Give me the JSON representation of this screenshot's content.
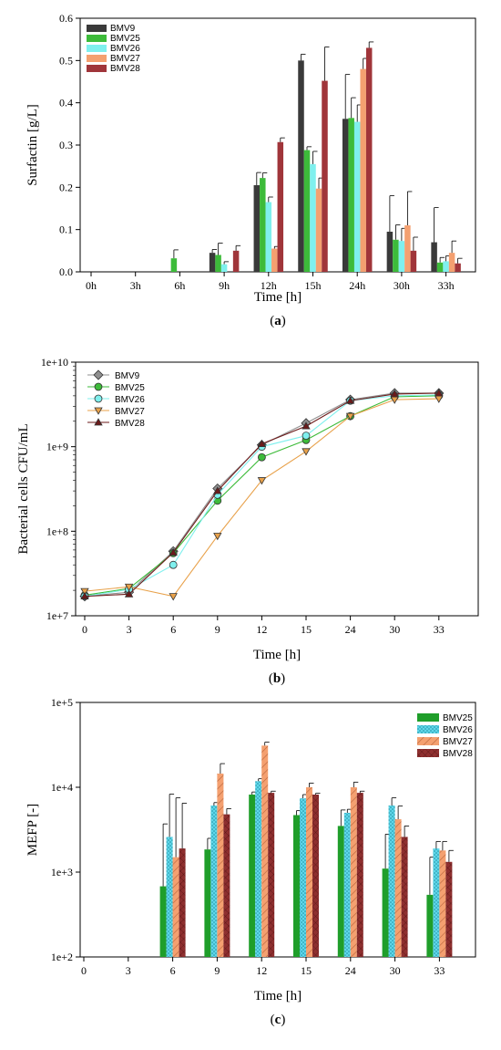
{
  "chart_data": [
    {
      "type": "bar",
      "panel_label": "a",
      "xlabel": "Time [h]",
      "ylabel": "Surfactin [g/L]",
      "ylim": [
        0,
        0.6
      ],
      "y_ticks": [
        "0.0",
        "0.1",
        "0.2",
        "0.3",
        "0.4",
        "0.5",
        "0.6"
      ],
      "y_tick_values": [
        0,
        0.1,
        0.2,
        0.3,
        0.4,
        0.5,
        0.6
      ],
      "categories": [
        "0h",
        "3h",
        "6h",
        "9h",
        "12h",
        "15h",
        "24h",
        "30h",
        "33h"
      ],
      "legend_position": "top-left",
      "series": [
        {
          "name": "BMV9",
          "color": "#3a3a3a",
          "values": [
            0,
            0,
            0,
            0.045,
            0.205,
            0.5,
            0.362,
            0.095,
            0.07
          ],
          "errors": [
            0,
            0,
            0,
            0.008,
            0.03,
            0.015,
            0.105,
            0.085,
            0.082
          ]
        },
        {
          "name": "BMV25",
          "color": "#3dbb3a",
          "values": [
            0,
            0,
            0.032,
            0.04,
            0.222,
            0.288,
            0.364,
            0.076,
            0.022
          ],
          "errors": [
            0,
            0,
            0.02,
            0.028,
            0.012,
            0.008,
            0.048,
            0.035,
            0.012
          ]
        },
        {
          "name": "BMV26",
          "color": "#7ff0ee",
          "values": [
            0,
            0,
            0,
            0.018,
            0.165,
            0.255,
            0.355,
            0.073,
            0.025
          ],
          "errors": [
            0,
            0,
            0,
            0.006,
            0.012,
            0.03,
            0.04,
            0.03,
            0.013
          ]
        },
        {
          "name": "BMV27",
          "color": "#f4a070",
          "values": [
            0,
            0,
            0,
            0,
            0.055,
            0.197,
            0.48,
            0.11,
            0.045
          ],
          "errors": [
            0,
            0,
            0,
            0,
            0.005,
            0.025,
            0.025,
            0.08,
            0.028
          ]
        },
        {
          "name": "BMV28",
          "color": "#a0353a",
          "values": [
            0,
            0,
            0,
            0.05,
            0.307,
            0.452,
            0.53,
            0.05,
            0.02
          ],
          "errors": [
            0,
            0,
            0,
            0.012,
            0.01,
            0.08,
            0.014,
            0.032,
            0.012
          ]
        }
      ]
    },
    {
      "type": "line",
      "panel_label": "b",
      "xlabel": "Time [h]",
      "ylabel": "Bacterial cells CFU/mL",
      "y_scale": "log",
      "ylim": [
        10000000,
        10000000000
      ],
      "y_ticks": [
        "1e+7",
        "1e+8",
        "1e+9",
        "1e+10"
      ],
      "x": [
        "0",
        "3",
        "6",
        "9",
        "12",
        "15",
        "24",
        "30",
        "33"
      ],
      "legend_position": "top-left",
      "series": [
        {
          "name": "BMV9",
          "color": "#8f8f8f",
          "marker": "diamond",
          "values": [
            17000000,
            19000000,
            58000000,
            320000000,
            1050000000,
            1900000000,
            3600000000,
            4300000000,
            4300000000
          ]
        },
        {
          "name": "BMV25",
          "color": "#3dbb3a",
          "marker": "circle",
          "values": [
            17500000,
            21000000,
            55000000,
            230000000,
            750000000,
            1200000000,
            2300000000,
            3900000000,
            4000000000
          ]
        },
        {
          "name": "BMV26",
          "color": "#7ff0ee",
          "marker": "circle",
          "values": [
            17000000,
            20500000,
            40000000,
            270000000,
            1000000000,
            1350000000,
            3500000000,
            4000000000,
            4100000000
          ]
        },
        {
          "name": "BMV27",
          "color": "#e8a14a",
          "marker": "triangle-down",
          "values": [
            19500000,
            22000000,
            17000000,
            88000000,
            400000000,
            880000000,
            2300000000,
            3600000000,
            3700000000
          ]
        },
        {
          "name": "BMV28",
          "color": "#6b1a1a",
          "marker": "triangle-up",
          "values": [
            17000000,
            18000000,
            56000000,
            300000000,
            1080000000,
            1750000000,
            3500000000,
            4200000000,
            4300000000
          ]
        }
      ]
    },
    {
      "type": "bar",
      "panel_label": "c",
      "xlabel": "Time [h]",
      "ylabel": "MEFP [-]",
      "y_scale": "log",
      "ylim": [
        100,
        100000
      ],
      "y_ticks": [
        "1e+2",
        "1e+3",
        "1e+4",
        "1e+5"
      ],
      "categories": [
        "0",
        "3",
        "6",
        "9",
        "12",
        "15",
        "24",
        "30",
        "33"
      ],
      "legend_position": "top-right",
      "series": [
        {
          "name": "BMV25",
          "color": "#1f9e2a",
          "pattern": "solid",
          "values": [
            0,
            0,
            680,
            1850,
            8200,
            4700,
            3500,
            1100,
            540
          ],
          "errors_upper": [
            0,
            0,
            3700,
            2500,
            8800,
            5300,
            5400,
            2800,
            1500
          ]
        },
        {
          "name": "BMV26",
          "color": "#5fd7ea",
          "pattern": "dots",
          "values": [
            0,
            0,
            2600,
            6100,
            11800,
            7400,
            5000,
            6100,
            1900
          ],
          "errors_upper": [
            0,
            0,
            8300,
            6600,
            12600,
            8200,
            5500,
            7500,
            2300
          ]
        },
        {
          "name": "BMV27",
          "color": "#f4a070",
          "pattern": "hatch",
          "values": [
            0,
            0,
            1500,
            14500,
            31000,
            10000,
            10000,
            4200,
            1800
          ],
          "errors_upper": [
            0,
            0,
            7500,
            19000,
            34000,
            11200,
            11500,
            6000,
            2300
          ]
        },
        {
          "name": "BMV28",
          "color": "#8e2f2f",
          "pattern": "crosshatch",
          "values": [
            0,
            0,
            1900,
            4800,
            8600,
            8200,
            8600,
            2600,
            1320
          ],
          "errors_upper": [
            0,
            0,
            6500,
            5600,
            9000,
            8500,
            9000,
            3500,
            1800
          ]
        }
      ]
    }
  ]
}
